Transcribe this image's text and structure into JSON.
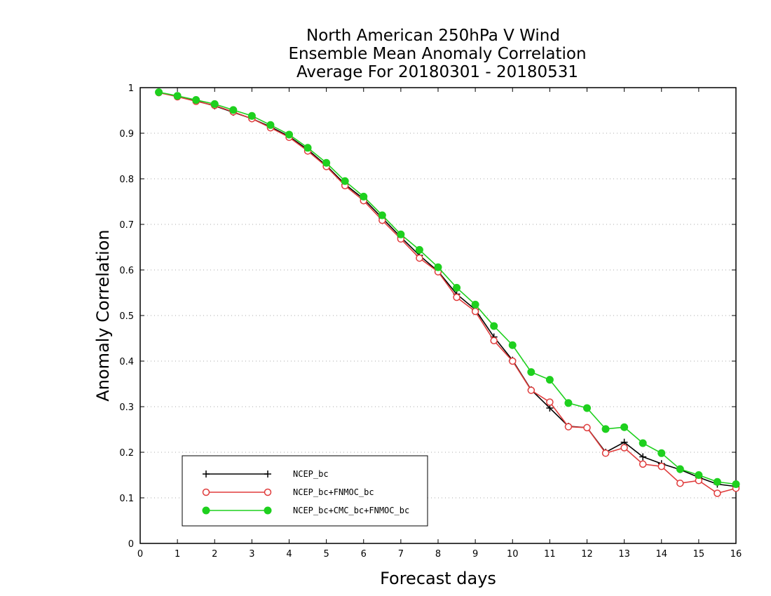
{
  "chart_data": {
    "type": "line",
    "title": [
      "North American 250hPa V Wind",
      "Ensemble Mean Anomaly Correlation",
      "Average For 20180301 - 20180531"
    ],
    "xlabel": "Forecast days",
    "ylabel": "Anomaly Correlation",
    "xlim": [
      0,
      16
    ],
    "ylim": [
      0,
      1
    ],
    "xticks": [
      0,
      1,
      2,
      3,
      4,
      5,
      6,
      7,
      8,
      9,
      10,
      11,
      12,
      13,
      14,
      15,
      16
    ],
    "yticks": [
      0,
      0.1,
      0.2,
      0.3,
      0.4,
      0.5,
      0.6,
      0.7,
      0.8,
      0.9,
      1
    ],
    "grid": "horizontal dotted",
    "legend_placement": "bottom-left",
    "x": [
      0.5,
      1,
      1.5,
      2,
      2.5,
      3,
      3.5,
      4,
      4.5,
      5,
      5.5,
      6,
      6.5,
      7,
      7.5,
      8,
      8.5,
      9,
      9.5,
      10,
      10.5,
      11,
      11.5,
      12,
      12.5,
      13,
      13.5,
      14,
      14.5,
      15,
      15.5,
      16
    ],
    "series": [
      {
        "name": "NCEP_bc",
        "color": "#000000",
        "marker": "plus",
        "values": [
          0.989,
          0.981,
          0.971,
          0.96,
          0.946,
          0.932,
          0.914,
          0.893,
          0.864,
          0.829,
          0.788,
          0.756,
          0.714,
          0.672,
          0.632,
          0.597,
          0.547,
          0.513,
          0.453,
          0.402,
          0.337,
          0.297,
          0.257,
          0.254,
          0.2,
          0.222,
          0.19,
          0.175,
          0.162,
          0.145,
          0.13,
          0.125
        ]
      },
      {
        "name": "NCEP_bc+FNMOC_bc",
        "color": "#e03c3c",
        "marker": "open-circle",
        "values": [
          0.989,
          0.98,
          0.97,
          0.961,
          0.947,
          0.932,
          0.912,
          0.891,
          0.861,
          0.827,
          0.785,
          0.752,
          0.709,
          0.668,
          0.626,
          0.596,
          0.54,
          0.509,
          0.445,
          0.4,
          0.336,
          0.31,
          0.256,
          0.254,
          0.198,
          0.21,
          0.174,
          0.169,
          0.132,
          0.138,
          0.11,
          0.121
        ]
      },
      {
        "name": "NCEP_bc+CMC_bc+FNMOC_bc",
        "color": "#1ed01e",
        "marker": "filled-circle",
        "values": [
          0.99,
          0.982,
          0.973,
          0.964,
          0.951,
          0.938,
          0.918,
          0.897,
          0.868,
          0.835,
          0.795,
          0.761,
          0.72,
          0.678,
          0.644,
          0.606,
          0.561,
          0.524,
          0.477,
          0.435,
          0.376,
          0.359,
          0.308,
          0.297,
          0.251,
          0.255,
          0.22,
          0.198,
          0.163,
          0.15,
          0.135,
          0.13
        ]
      }
    ]
  }
}
